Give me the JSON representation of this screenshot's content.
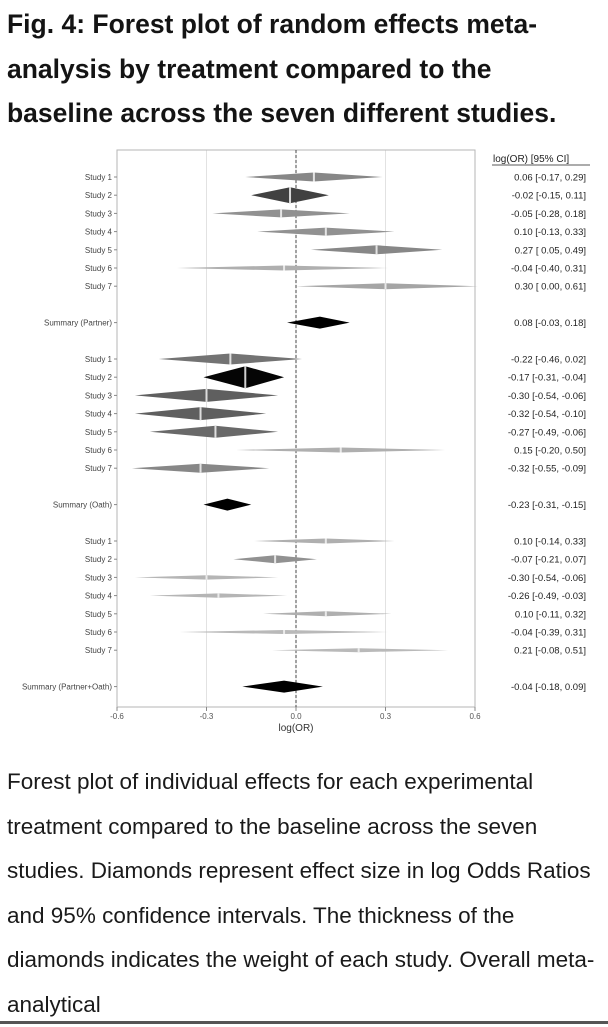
{
  "title": "Fig. 4: Forest plot of random effects meta-analysis by treatment compared to the baseline across the seven different studies.",
  "caption": "Forest plot of individual effects for each experimental treatment compared to the baseline across the seven studies. Diamonds represent effect size in log Odds Ratios and 95% confidence intervals. The thickness of the diamonds indicates the weight of each study. Overall meta-analytical",
  "chart_data": {
    "type": "forest",
    "xlabel": "log(OR)",
    "xlim": [
      -0.6,
      0.6
    ],
    "xticks": [
      -0.6,
      -0.3,
      0.0,
      0.3,
      0.6
    ],
    "xtick_labels": [
      "-0.6",
      "-0.3",
      "0.0",
      "0.3",
      "0.6"
    ],
    "reference_line": 0,
    "ci_header": "log(OR) [95% CI]",
    "groups": [
      {
        "rows": [
          {
            "label": "Study 1",
            "est": 0.06,
            "lo": -0.17,
            "hi": 0.29,
            "ci": "0.06 [-0.17, 0.29]",
            "weight": 0.35
          },
          {
            "label": "Study 2",
            "est": -0.02,
            "lo": -0.15,
            "hi": 0.11,
            "ci": "-0.02 [-0.15, 0.11]",
            "weight": 0.7
          },
          {
            "label": "Study 3",
            "est": -0.05,
            "lo": -0.28,
            "hi": 0.18,
            "ci": "-0.05 [-0.28, 0.18]",
            "weight": 0.3
          },
          {
            "label": "Study 4",
            "est": 0.1,
            "lo": -0.13,
            "hi": 0.33,
            "ci": "0.10 [-0.13, 0.33]",
            "weight": 0.3
          },
          {
            "label": "Study 5",
            "est": 0.27,
            "lo": 0.05,
            "hi": 0.49,
            "ci": "0.27 [ 0.05, 0.49]",
            "weight": 0.35
          },
          {
            "label": "Study 6",
            "est": -0.04,
            "lo": -0.4,
            "hi": 0.31,
            "ci": "-0.04 [-0.40, 0.31]",
            "weight": 0.15
          },
          {
            "label": "Study 7",
            "est": 0.3,
            "lo": 0.0,
            "hi": 0.61,
            "ci": "0.30 [ 0.00, 0.61]",
            "weight": 0.2
          }
        ],
        "summary": {
          "label": "Summary (Partner)",
          "est": 0.08,
          "lo": -0.03,
          "hi": 0.18,
          "ci": "0.08 [-0.03, 0.18]"
        }
      },
      {
        "rows": [
          {
            "label": "Study 1",
            "est": -0.22,
            "lo": -0.46,
            "hi": 0.02,
            "ci": "-0.22 [-0.46, 0.02]",
            "weight": 0.45
          },
          {
            "label": "Study 2",
            "est": -0.17,
            "lo": -0.31,
            "hi": -0.04,
            "ci": "-0.17 [-0.31, -0.04]",
            "weight": 1.0
          },
          {
            "label": "Study 3",
            "est": -0.3,
            "lo": -0.54,
            "hi": -0.06,
            "ci": "-0.30 [-0.54, -0.06]",
            "weight": 0.55
          },
          {
            "label": "Study 4",
            "est": -0.32,
            "lo": -0.54,
            "hi": -0.1,
            "ci": "-0.32 [-0.54, -0.10]",
            "weight": 0.55
          },
          {
            "label": "Study 5",
            "est": -0.27,
            "lo": -0.49,
            "hi": -0.06,
            "ci": "-0.27 [-0.49, -0.06]",
            "weight": 0.5
          },
          {
            "label": "Study 6",
            "est": 0.15,
            "lo": -0.2,
            "hi": 0.5,
            "ci": "0.15 [-0.20, 0.50]",
            "weight": 0.15
          },
          {
            "label": "Study 7",
            "est": -0.32,
            "lo": -0.55,
            "hi": -0.09,
            "ci": "-0.32 [-0.55, -0.09]",
            "weight": 0.35
          }
        ],
        "summary": {
          "label": "Summary (Oath)",
          "est": -0.23,
          "lo": -0.31,
          "hi": -0.15,
          "ci": "-0.23 [-0.31, -0.15]"
        }
      },
      {
        "rows": [
          {
            "label": "Study 1",
            "est": 0.1,
            "lo": -0.14,
            "hi": 0.33,
            "ci": "0.10 [-0.14, 0.33]",
            "weight": 0.15
          },
          {
            "label": "Study 2",
            "est": -0.07,
            "lo": -0.21,
            "hi": 0.07,
            "ci": "-0.07 [-0.21, 0.07]",
            "weight": 0.3
          },
          {
            "label": "Study 3",
            "est": -0.3,
            "lo": -0.54,
            "hi": -0.06,
            "ci": "-0.30 [-0.54, -0.06]",
            "weight": 0.12
          },
          {
            "label": "Study 4",
            "est": -0.26,
            "lo": -0.49,
            "hi": -0.03,
            "ci": "-0.26 [-0.49, -0.03]",
            "weight": 0.12
          },
          {
            "label": "Study 5",
            "est": 0.1,
            "lo": -0.11,
            "hi": 0.32,
            "ci": "0.10 [-0.11, 0.32]",
            "weight": 0.15
          },
          {
            "label": "Study 6",
            "est": -0.04,
            "lo": -0.39,
            "hi": 0.31,
            "ci": "-0.04 [-0.39, 0.31]",
            "weight": 0.1
          },
          {
            "label": "Study 7",
            "est": 0.21,
            "lo": -0.08,
            "hi": 0.51,
            "ci": "0.21 [-0.08, 0.51]",
            "weight": 0.1
          }
        ],
        "summary": {
          "label": "Summary (Partner+Oath)",
          "est": -0.04,
          "lo": -0.18,
          "hi": 0.09,
          "ci": "-0.04 [-0.18, 0.09]"
        }
      }
    ]
  }
}
